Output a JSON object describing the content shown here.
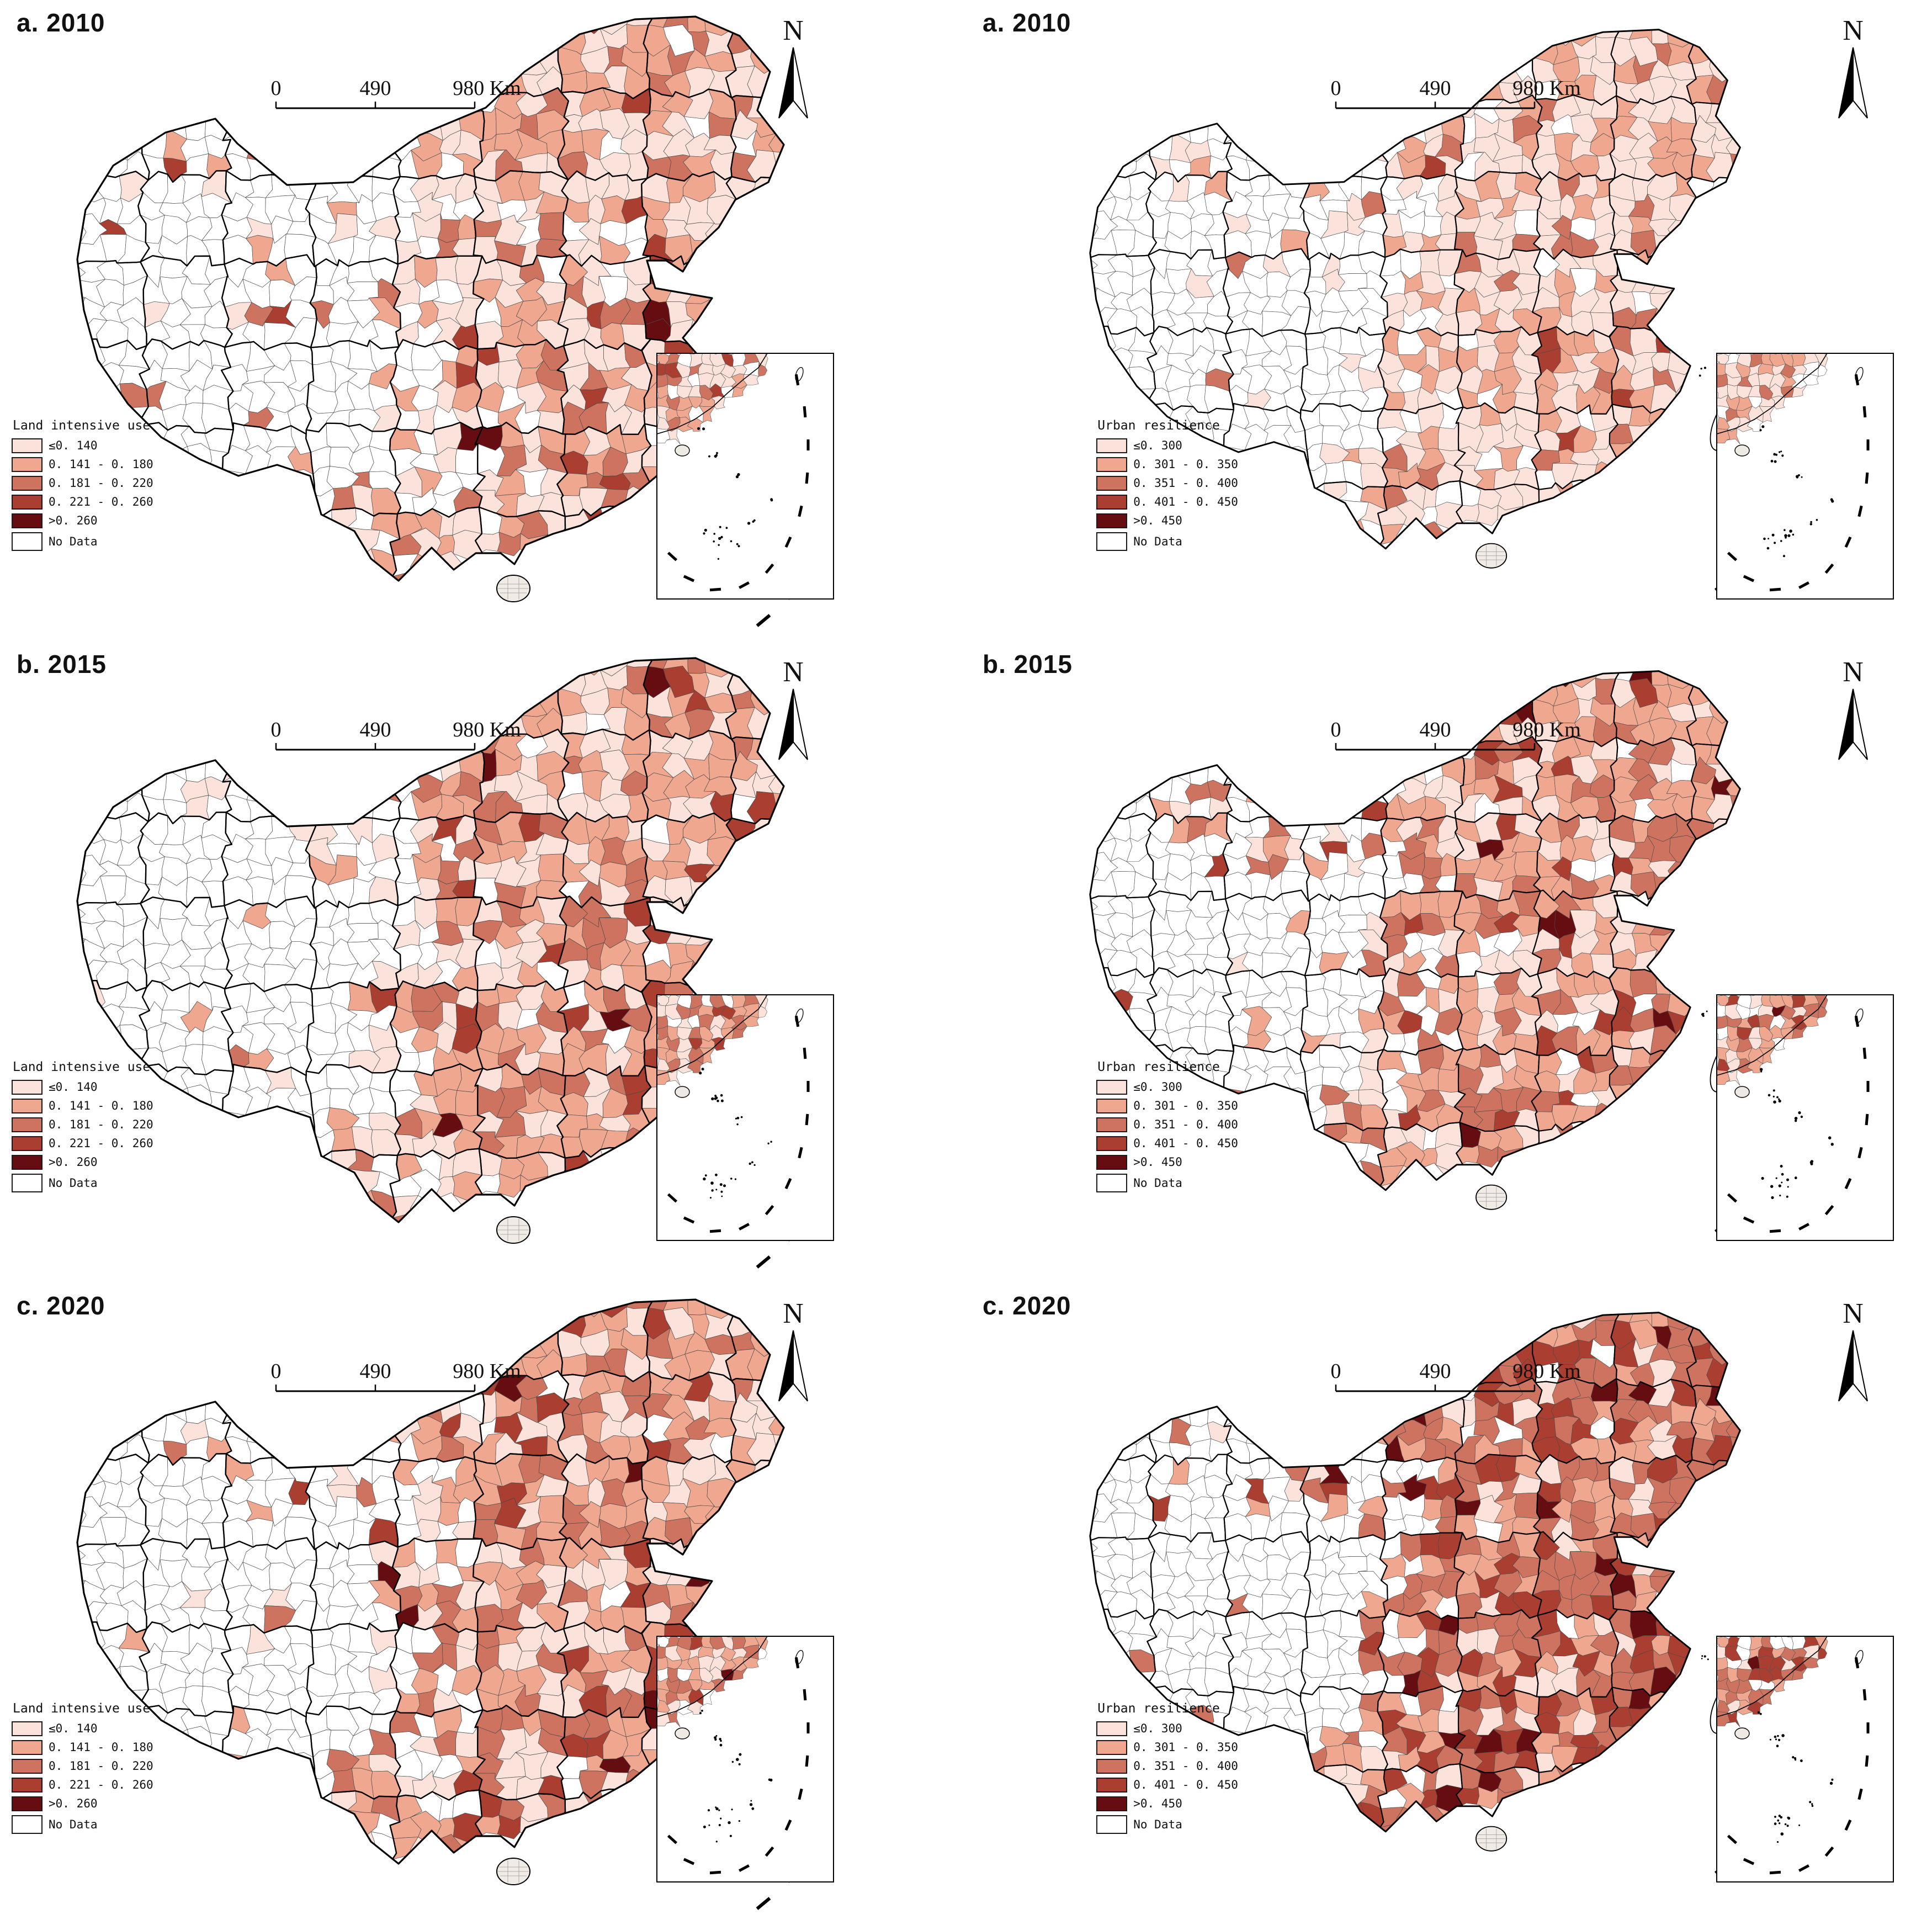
{
  "figure": {
    "north_label": "N",
    "scale_bar": {
      "labels": [
        "0",
        "490",
        "980 Km"
      ]
    },
    "no_data_label": "No Data",
    "no_data_color": "#ffffff",
    "columns": [
      {
        "id": "land-intensive-use",
        "legend_title": "Land intensive use",
        "classes": [
          {
            "label": "≤0. 140",
            "color": "#fbe3dc"
          },
          {
            "label": "0. 141 - 0. 180",
            "color": "#f0a78f"
          },
          {
            "label": "0. 181 - 0. 220",
            "color": "#ce7360"
          },
          {
            "label": "0. 221 - 0. 260",
            "color": "#a93e31"
          },
          {
            "label": ">0. 260",
            "color": "#650d10"
          }
        ],
        "panels": [
          {
            "label": "a. 2010",
            "class_weights": [
              46,
              32,
              16,
              5,
              1
            ],
            "no_data_factor": 1.0
          },
          {
            "label": "b. 2015",
            "class_weights": [
              40,
              36,
              18,
              5,
              1
            ],
            "no_data_factor": 1.0
          },
          {
            "label": "c. 2020",
            "class_weights": [
              30,
              40,
              22,
              7,
              1
            ],
            "no_data_factor": 0.95
          }
        ]
      },
      {
        "id": "urban-resilience",
        "legend_title": "Urban resilience",
        "classes": [
          {
            "label": "≤0. 300",
            "color": "#fbe3dc"
          },
          {
            "label": "0. 301 - 0. 350",
            "color": "#f0a78f"
          },
          {
            "label": "0. 351 - 0. 400",
            "color": "#ce7360"
          },
          {
            "label": "0. 401 - 0. 450",
            "color": "#a93e31"
          },
          {
            "label": ">0. 450",
            "color": "#650d10"
          }
        ],
        "panels": [
          {
            "label": "a. 2010",
            "class_weights": [
              64,
              27,
              8,
              1,
              0
            ],
            "no_data_factor": 1.15
          },
          {
            "label": "b. 2015",
            "class_weights": [
              30,
              40,
              24,
              5,
              1
            ],
            "no_data_factor": 0.95
          },
          {
            "label": "c. 2020",
            "class_weights": [
              12,
              27,
              38,
              19,
              4
            ],
            "no_data_factor": 0.7
          }
        ]
      }
    ]
  }
}
